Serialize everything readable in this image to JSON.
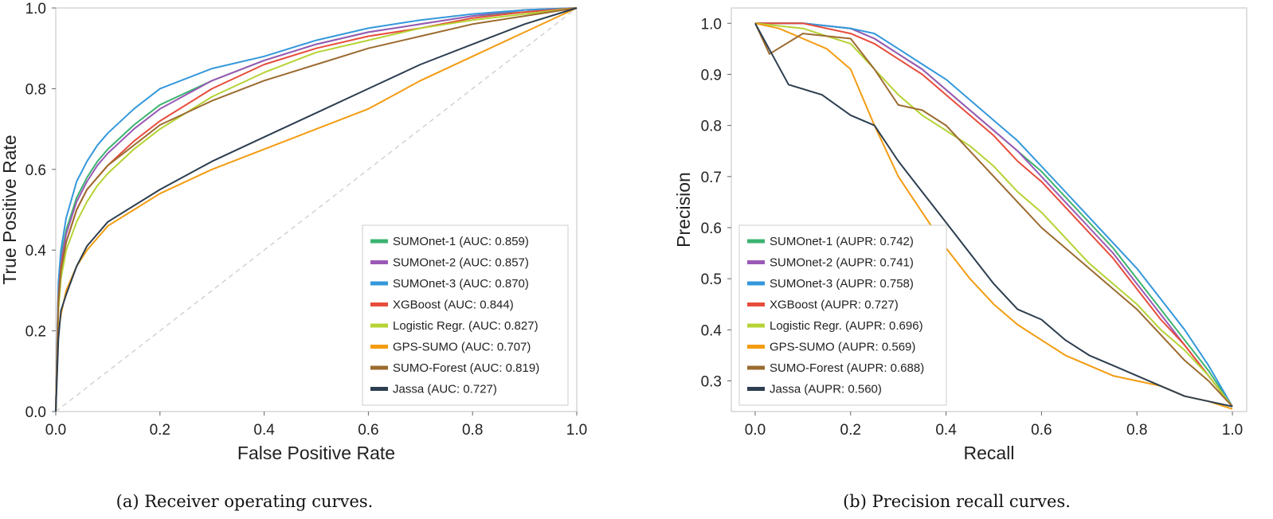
{
  "captions": [
    "(a) Receiver operating curves.",
    "(b) Precision recall curves."
  ],
  "chart_data": [
    {
      "type": "line",
      "xlabel": "False Positive Rate",
      "ylabel": "True Positive Rate",
      "xlim": [
        0,
        1
      ],
      "ylim": [
        0,
        1
      ],
      "xticks": [
        "0.0",
        "0.2",
        "0.4",
        "0.6",
        "0.8",
        "1.0"
      ],
      "yticks": [
        "0.0",
        "0.2",
        "0.4",
        "0.6",
        "0.8",
        "1.0"
      ],
      "grid": false,
      "legend_position": "bottom-right",
      "diagonal_reference": true,
      "series": [
        {
          "name": "SUMOnet-1 (AUC: 0.859)",
          "color": "#3cb371",
          "x": [
            0,
            0.005,
            0.01,
            0.02,
            0.04,
            0.06,
            0.08,
            0.1,
            0.15,
            0.2,
            0.3,
            0.4,
            0.5,
            0.6,
            0.7,
            0.8,
            0.9,
            1.0
          ],
          "y": [
            0,
            0.3,
            0.38,
            0.45,
            0.53,
            0.58,
            0.62,
            0.65,
            0.71,
            0.76,
            0.82,
            0.87,
            0.91,
            0.94,
            0.96,
            0.98,
            0.99,
            1.0
          ]
        },
        {
          "name": "SUMOnet-2 (AUC: 0.857)",
          "color": "#9b59b6",
          "x": [
            0,
            0.005,
            0.01,
            0.02,
            0.04,
            0.06,
            0.08,
            0.1,
            0.15,
            0.2,
            0.3,
            0.4,
            0.5,
            0.6,
            0.7,
            0.8,
            0.9,
            1.0
          ],
          "y": [
            0,
            0.3,
            0.37,
            0.44,
            0.52,
            0.57,
            0.61,
            0.64,
            0.7,
            0.75,
            0.82,
            0.87,
            0.91,
            0.94,
            0.96,
            0.98,
            0.995,
            1.0
          ]
        },
        {
          "name": "SUMOnet-3 (AUC: 0.870)",
          "color": "#3498db",
          "x": [
            0,
            0.005,
            0.01,
            0.02,
            0.04,
            0.06,
            0.08,
            0.1,
            0.15,
            0.2,
            0.3,
            0.4,
            0.5,
            0.6,
            0.7,
            0.8,
            0.9,
            1.0
          ],
          "y": [
            0,
            0.32,
            0.4,
            0.48,
            0.57,
            0.62,
            0.66,
            0.69,
            0.75,
            0.8,
            0.85,
            0.88,
            0.92,
            0.95,
            0.97,
            0.985,
            0.995,
            1.0
          ]
        },
        {
          "name": "XGBoost (AUC: 0.844)",
          "color": "#e74c3c",
          "x": [
            0,
            0.005,
            0.01,
            0.02,
            0.04,
            0.06,
            0.08,
            0.1,
            0.15,
            0.2,
            0.3,
            0.4,
            0.5,
            0.6,
            0.7,
            0.8,
            0.9,
            1.0
          ],
          "y": [
            0,
            0.28,
            0.36,
            0.42,
            0.5,
            0.55,
            0.58,
            0.61,
            0.67,
            0.72,
            0.8,
            0.86,
            0.9,
            0.93,
            0.95,
            0.975,
            0.99,
            1.0
          ]
        },
        {
          "name": "Logistic Regr. (AUC: 0.827)",
          "color": "#b5d334",
          "x": [
            0,
            0.005,
            0.01,
            0.02,
            0.04,
            0.06,
            0.08,
            0.1,
            0.15,
            0.2,
            0.3,
            0.4,
            0.5,
            0.6,
            0.7,
            0.8,
            0.9,
            1.0
          ],
          "y": [
            0,
            0.25,
            0.33,
            0.4,
            0.47,
            0.52,
            0.56,
            0.59,
            0.65,
            0.7,
            0.78,
            0.84,
            0.89,
            0.92,
            0.95,
            0.97,
            0.985,
            1.0
          ]
        },
        {
          "name": "GPS-SUMO (AUC: 0.707)",
          "color": "#f39c12",
          "x": [
            0,
            0.005,
            0.01,
            0.02,
            0.04,
            0.06,
            0.08,
            0.1,
            0.15,
            0.2,
            0.3,
            0.4,
            0.5,
            0.6,
            0.7,
            0.8,
            0.9,
            1.0
          ],
          "y": [
            0,
            0.2,
            0.24,
            0.3,
            0.36,
            0.4,
            0.43,
            0.46,
            0.5,
            0.54,
            0.6,
            0.65,
            0.7,
            0.75,
            0.82,
            0.88,
            0.94,
            1.0
          ]
        },
        {
          "name": "SUMO-Forest (AUC: 0.819)",
          "color": "#9c6b30",
          "x": [
            0,
            0.005,
            0.01,
            0.02,
            0.04,
            0.06,
            0.08,
            0.1,
            0.15,
            0.2,
            0.3,
            0.4,
            0.5,
            0.6,
            0.7,
            0.8,
            0.9,
            1.0
          ],
          "y": [
            0,
            0.27,
            0.35,
            0.42,
            0.5,
            0.55,
            0.58,
            0.61,
            0.66,
            0.71,
            0.77,
            0.82,
            0.86,
            0.9,
            0.93,
            0.96,
            0.98,
            1.0
          ]
        },
        {
          "name": "Jassa (AUC: 0.727)",
          "color": "#2c3e50",
          "x": [
            0,
            0.005,
            0.01,
            0.02,
            0.04,
            0.06,
            0.08,
            0.1,
            0.15,
            0.2,
            0.3,
            0.4,
            0.5,
            0.6,
            0.7,
            0.8,
            0.9,
            1.0
          ],
          "y": [
            0,
            0.18,
            0.25,
            0.29,
            0.36,
            0.41,
            0.44,
            0.47,
            0.51,
            0.55,
            0.62,
            0.68,
            0.74,
            0.8,
            0.86,
            0.91,
            0.96,
            1.0
          ]
        }
      ]
    },
    {
      "type": "line",
      "xlabel": "Recall",
      "ylabel": "Precision",
      "xlim": [
        -0.05,
        1.03
      ],
      "ylim": [
        0.24,
        1.03
      ],
      "xticks": [
        "0.0",
        "0.2",
        "0.4",
        "0.6",
        "0.8",
        "1.0"
      ],
      "yticks": [
        "0.3",
        "0.4",
        "0.5",
        "0.6",
        "0.7",
        "0.8",
        "0.9",
        "1.0"
      ],
      "grid": false,
      "legend_position": "bottom-left",
      "series": [
        {
          "name": "SUMOnet-1 (AUPR: 0.742)",
          "color": "#3cb371",
          "x": [
            0,
            0.1,
            0.2,
            0.25,
            0.3,
            0.35,
            0.4,
            0.45,
            0.5,
            0.55,
            0.6,
            0.65,
            0.7,
            0.75,
            0.8,
            0.85,
            0.9,
            0.95,
            1.0
          ],
          "y": [
            1.0,
            1.0,
            0.99,
            0.97,
            0.94,
            0.91,
            0.87,
            0.83,
            0.79,
            0.75,
            0.71,
            0.66,
            0.61,
            0.56,
            0.5,
            0.44,
            0.38,
            0.32,
            0.25
          ]
        },
        {
          "name": "SUMOnet-2 (AUPR: 0.741)",
          "color": "#9b59b6",
          "x": [
            0,
            0.1,
            0.2,
            0.25,
            0.3,
            0.35,
            0.4,
            0.45,
            0.5,
            0.55,
            0.6,
            0.65,
            0.7,
            0.75,
            0.8,
            0.85,
            0.9,
            0.95,
            1.0
          ],
          "y": [
            1.0,
            1.0,
            0.99,
            0.97,
            0.94,
            0.91,
            0.87,
            0.83,
            0.79,
            0.75,
            0.7,
            0.65,
            0.6,
            0.55,
            0.49,
            0.43,
            0.37,
            0.31,
            0.25
          ]
        },
        {
          "name": "SUMOnet-3 (AUPR: 0.758)",
          "color": "#3498db",
          "x": [
            0,
            0.1,
            0.2,
            0.25,
            0.3,
            0.35,
            0.4,
            0.45,
            0.5,
            0.55,
            0.6,
            0.65,
            0.7,
            0.75,
            0.8,
            0.85,
            0.9,
            0.95,
            1.0
          ],
          "y": [
            1.0,
            1.0,
            0.99,
            0.98,
            0.95,
            0.92,
            0.89,
            0.85,
            0.81,
            0.77,
            0.72,
            0.67,
            0.62,
            0.57,
            0.52,
            0.46,
            0.4,
            0.33,
            0.25
          ]
        },
        {
          "name": "XGBoost (AUPR: 0.727)",
          "color": "#e74c3c",
          "x": [
            0,
            0.1,
            0.2,
            0.25,
            0.3,
            0.35,
            0.4,
            0.45,
            0.5,
            0.55,
            0.6,
            0.65,
            0.7,
            0.75,
            0.8,
            0.85,
            0.9,
            0.95,
            1.0
          ],
          "y": [
            1.0,
            1.0,
            0.98,
            0.96,
            0.93,
            0.9,
            0.86,
            0.82,
            0.78,
            0.73,
            0.69,
            0.64,
            0.59,
            0.54,
            0.48,
            0.42,
            0.37,
            0.31,
            0.25
          ]
        },
        {
          "name": "Logistic Regr. (AUPR: 0.696)",
          "color": "#b5d334",
          "x": [
            0,
            0.1,
            0.2,
            0.25,
            0.3,
            0.35,
            0.4,
            0.45,
            0.5,
            0.55,
            0.6,
            0.65,
            0.7,
            0.75,
            0.8,
            0.85,
            0.9,
            0.95,
            1.0
          ],
          "y": [
            1.0,
            0.99,
            0.96,
            0.91,
            0.86,
            0.82,
            0.79,
            0.76,
            0.72,
            0.67,
            0.63,
            0.58,
            0.53,
            0.49,
            0.45,
            0.4,
            0.36,
            0.31,
            0.25
          ]
        },
        {
          "name": "GPS-SUMO (AUPR: 0.569)",
          "color": "#f39c12",
          "x": [
            0,
            0.05,
            0.1,
            0.15,
            0.2,
            0.25,
            0.3,
            0.35,
            0.4,
            0.45,
            0.5,
            0.55,
            0.6,
            0.65,
            0.7,
            0.75,
            0.8,
            0.85,
            0.9,
            0.95,
            1.0
          ],
          "y": [
            1.0,
            0.99,
            0.97,
            0.95,
            0.91,
            0.8,
            0.7,
            0.63,
            0.56,
            0.5,
            0.45,
            0.41,
            0.38,
            0.35,
            0.33,
            0.31,
            0.3,
            0.29,
            0.27,
            0.26,
            0.245
          ]
        },
        {
          "name": "SUMO-Forest (AUPR: 0.688)",
          "color": "#9c6b30",
          "x": [
            0,
            0.03,
            0.1,
            0.2,
            0.25,
            0.3,
            0.35,
            0.4,
            0.45,
            0.5,
            0.55,
            0.6,
            0.65,
            0.7,
            0.75,
            0.8,
            0.85,
            0.9,
            0.95,
            1.0
          ],
          "y": [
            1.0,
            0.94,
            0.98,
            0.97,
            0.91,
            0.84,
            0.83,
            0.8,
            0.75,
            0.7,
            0.65,
            0.6,
            0.56,
            0.52,
            0.48,
            0.44,
            0.39,
            0.34,
            0.3,
            0.25
          ]
        },
        {
          "name": "Jassa (AUPR: 0.560)",
          "color": "#2c3e50",
          "x": [
            0,
            0.07,
            0.14,
            0.2,
            0.25,
            0.3,
            0.35,
            0.4,
            0.45,
            0.5,
            0.55,
            0.6,
            0.65,
            0.7,
            0.75,
            0.8,
            0.85,
            0.9,
            0.95,
            1.0
          ],
          "y": [
            1.0,
            0.88,
            0.86,
            0.82,
            0.8,
            0.73,
            0.67,
            0.61,
            0.55,
            0.49,
            0.44,
            0.42,
            0.38,
            0.35,
            0.33,
            0.31,
            0.29,
            0.27,
            0.26,
            0.25
          ]
        }
      ]
    }
  ]
}
